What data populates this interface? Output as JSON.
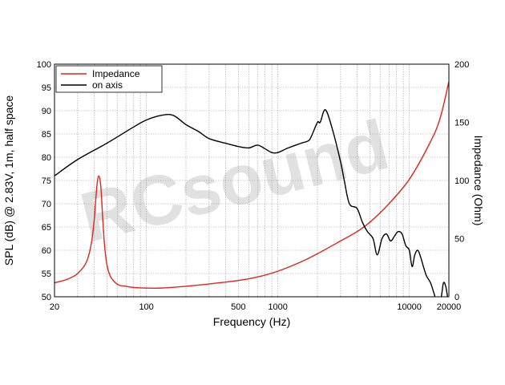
{
  "watermark": "RCsound",
  "chart_data": {
    "type": "line",
    "xscale": "log",
    "xlim": [
      20,
      20000
    ],
    "ylim": [
      50,
      100
    ],
    "y2lim": [
      0,
      200
    ],
    "grid": true,
    "xlabel": "Frequency (Hz)",
    "ylabel": "SPL (dB) @ 2.83V, 1m, half space",
    "y2label": "Impedance (Ohm)",
    "x_ticks": [
      20,
      100,
      500,
      1000,
      10000,
      20000
    ],
    "x_tick_labels": [
      "20",
      "100",
      "500",
      "1000",
      "10000",
      "20000"
    ],
    "y_ticks": [
      50,
      55,
      60,
      65,
      70,
      75,
      80,
      85,
      90,
      95,
      100
    ],
    "y_tick_labels": [
      "50",
      "55",
      "60",
      "65",
      "70",
      "75",
      "80",
      "85",
      "90",
      "95",
      "100"
    ],
    "y2_ticks": [
      0,
      50,
      100,
      150,
      200
    ],
    "y2_tick_labels": [
      "0",
      "50",
      "100",
      "150",
      "200"
    ],
    "legend_position": "top-left",
    "series": [
      {
        "name": "Impedance",
        "axis": "right",
        "color": "#e2231a",
        "x": [
          20,
          25,
          30,
          35,
          38,
          40,
          42,
          43.5,
          45,
          46.5,
          48,
          50,
          53,
          57,
          62,
          70,
          80,
          100,
          130,
          200,
          300,
          500,
          700,
          1000,
          1500,
          2000,
          3000,
          4000,
          5000,
          7000,
          10000,
          14000,
          17000,
          20000
        ],
        "values": [
          12,
          15,
          20,
          30,
          45,
          65,
          95,
          104,
          95,
          68,
          45,
          28,
          18,
          13,
          10,
          9,
          8,
          7.5,
          7.5,
          9,
          11,
          14,
          17,
          22,
          30,
          37,
          48,
          56,
          64,
          80,
          101,
          130,
          152,
          185
        ]
      },
      {
        "name": "on axis",
        "axis": "left",
        "color": "#000000",
        "x": [
          20,
          30,
          50,
          80,
          100,
          130,
          160,
          200,
          250,
          300,
          400,
          500,
          600,
          700,
          800,
          900,
          1000,
          1200,
          1500,
          1700,
          1800,
          2000,
          2100,
          2300,
          2600,
          3000,
          3200,
          3500,
          4000,
          4400,
          4800,
          5300,
          5700,
          6200,
          6700,
          7200,
          7700,
          8200,
          8800,
          9400,
          10000,
          10500,
          11000,
          11600,
          12200,
          12800,
          13500,
          14500,
          15500,
          16500,
          17500,
          18200,
          19000,
          20000
        ],
        "values": [
          76,
          79.5,
          83,
          86.5,
          88,
          89,
          89,
          87,
          85.5,
          84,
          83,
          82.3,
          82,
          82.6,
          81.8,
          81,
          81,
          82,
          83,
          83.5,
          84.5,
          87.5,
          87.5,
          90.2,
          86,
          79,
          75,
          70,
          69,
          66,
          64,
          62.5,
          59,
          62.5,
          63.5,
          62,
          63,
          64,
          63.5,
          61,
          60,
          56.5,
          59,
          60,
          58.5,
          56.5,
          54.5,
          53,
          50.5,
          48,
          50,
          53,
          52,
          48
        ]
      }
    ]
  }
}
